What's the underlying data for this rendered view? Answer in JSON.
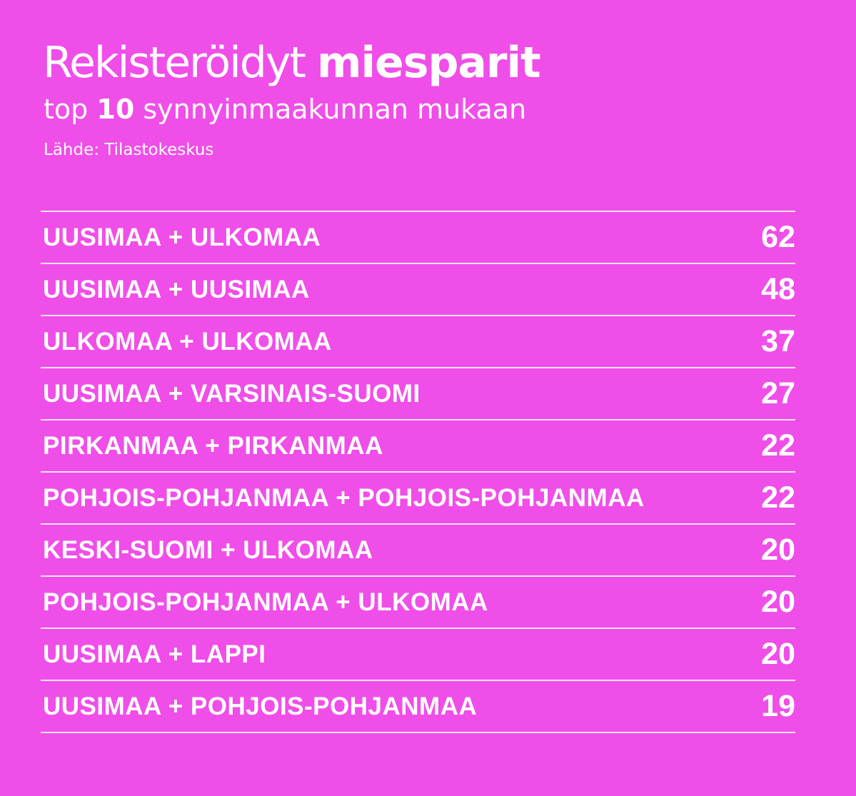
{
  "colors": {
    "background": "#f04ee8",
    "text": "#ffffff",
    "rule": "#ffffff"
  },
  "header": {
    "title_regular": "Rekisteröidyt",
    "title_bold": "miesparit",
    "subtitle_pre": "top",
    "subtitle_bold": "10",
    "subtitle_post": "synnyinmaakunnan mukaan",
    "source": "Lähde: Tilastokeskus"
  },
  "chart_data": {
    "type": "table",
    "title": "Rekisteröidyt miesparit",
    "subtitle": "top 10 synnyinmaakunnan mukaan",
    "source": "Lähde: Tilastokeskus",
    "rows": [
      {
        "label": "UUSIMAA + ULKOMAA",
        "value": 62
      },
      {
        "label": "UUSIMAA + UUSIMAA",
        "value": 48
      },
      {
        "label": "ULKOMAA + ULKOMAA",
        "value": 37
      },
      {
        "label": "UUSIMAA + VARSINAIS-SUOMI",
        "value": 27
      },
      {
        "label": "PIRKANMAA + PIRKANMAA",
        "value": 22
      },
      {
        "label": "POHJOIS-POHJANMAA + POHJOIS-POHJANMAA",
        "value": 22
      },
      {
        "label": "KESKI-SUOMI + ULKOMAA",
        "value": 20
      },
      {
        "label": "POHJOIS-POHJANMAA + ULKOMAA",
        "value": 20
      },
      {
        "label": "UUSIMAA + LAPPI",
        "value": 20
      },
      {
        "label": "UUSIMAA + POHJOIS-POHJANMAA",
        "value": 19
      }
    ]
  }
}
